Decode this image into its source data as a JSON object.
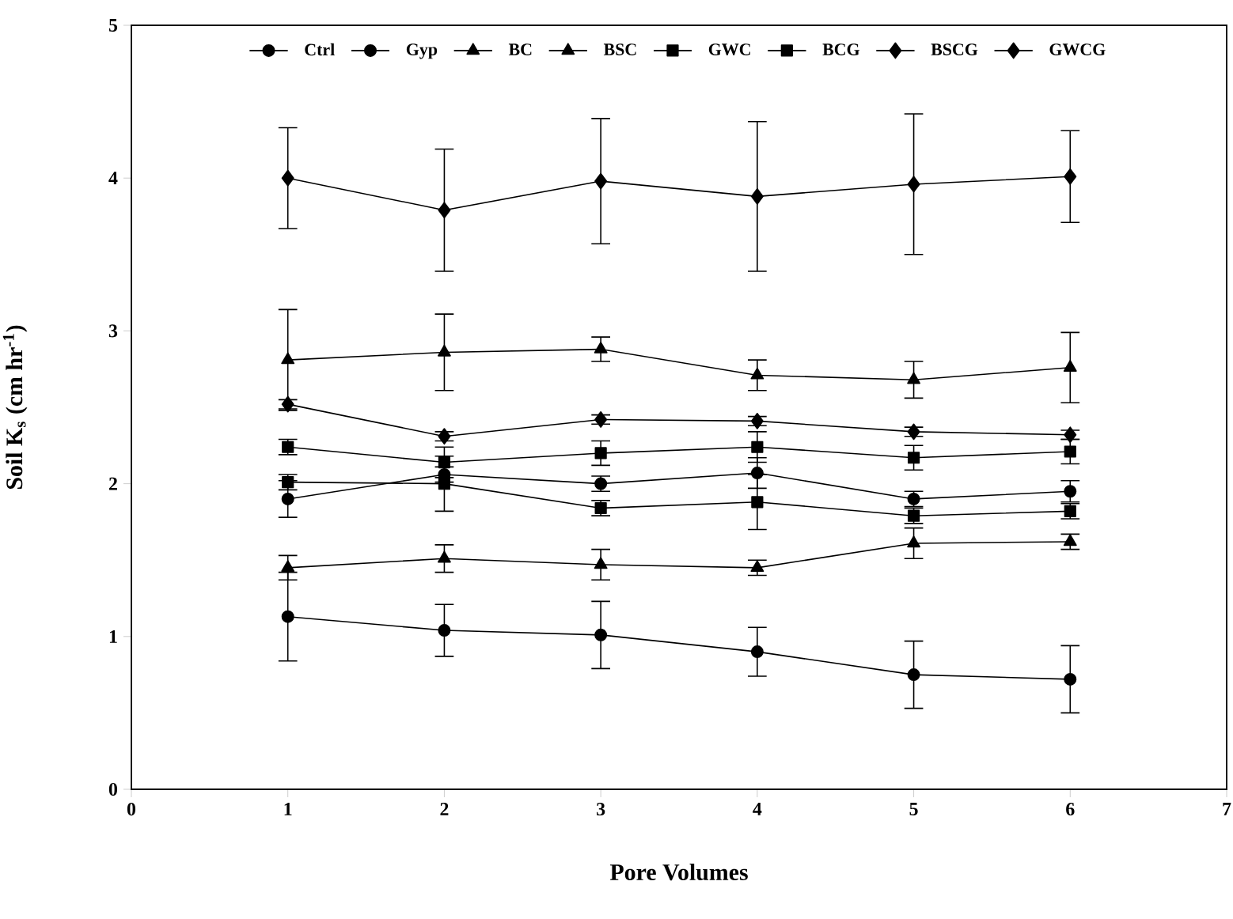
{
  "chart_data": {
    "type": "line",
    "xlabel": "Pore Volumes",
    "ylabel": "Soil K$_{s}$ (cm hr$^{-1}$)",
    "x": [
      1,
      2,
      3,
      4,
      5,
      6
    ],
    "xlim": [
      0,
      7
    ],
    "xticks": [
      0,
      1,
      2,
      3,
      4,
      5,
      6,
      7
    ],
    "ylim": [
      0,
      5
    ],
    "yticks": [
      0,
      1,
      2,
      3,
      4,
      5
    ],
    "legend": "top",
    "grid": false,
    "line_style": "solid",
    "series": [
      {
        "name": "Ctrl",
        "color": "#000000",
        "marker": "circle",
        "values": [
          1.13,
          1.04,
          1.01,
          0.9,
          0.75,
          0.72
        ],
        "errors": [
          0.29,
          0.17,
          0.22,
          0.16,
          0.22,
          0.22
        ]
      },
      {
        "name": "Gyp",
        "color": "#000000",
        "marker": "circle",
        "values": [
          1.9,
          2.06,
          2.0,
          2.07,
          1.9,
          1.95
        ],
        "errors": [
          0.12,
          0.05,
          0.05,
          0.1,
          0.05,
          0.07
        ]
      },
      {
        "name": "BC",
        "color": "#000000",
        "marker": "triangle",
        "values": [
          1.45,
          1.51,
          1.47,
          1.45,
          1.61,
          1.62
        ],
        "errors": [
          0.08,
          0.09,
          0.1,
          0.05,
          0.1,
          0.05
        ]
      },
      {
        "name": "BSC",
        "color": "#000000",
        "marker": "triangle",
        "values": [
          2.81,
          2.86,
          2.88,
          2.71,
          2.68,
          2.76
        ],
        "errors": [
          0.33,
          0.25,
          0.08,
          0.1,
          0.12,
          0.23
        ]
      },
      {
        "name": "GWC",
        "color": "#000000",
        "marker": "square",
        "values": [
          2.24,
          2.14,
          2.2,
          2.24,
          2.17,
          2.21
        ],
        "errors": [
          0.05,
          0.1,
          0.08,
          0.1,
          0.08,
          0.08
        ]
      },
      {
        "name": "BCG",
        "color": "#000000",
        "marker": "square",
        "values": [
          2.01,
          2.0,
          1.84,
          1.88,
          1.79,
          1.82
        ],
        "errors": [
          0.05,
          0.18,
          0.05,
          0.18,
          0.05,
          0.05
        ]
      },
      {
        "name": "BSCG",
        "color": "#000000",
        "marker": "diamond",
        "values": [
          4.0,
          3.79,
          3.98,
          3.88,
          3.96,
          4.01
        ],
        "errors": [
          0.33,
          0.4,
          0.41,
          0.49,
          0.46,
          0.3
        ]
      },
      {
        "name": "GWCG",
        "color": "#000000",
        "marker": "diamond",
        "values": [
          2.52,
          2.31,
          2.42,
          2.41,
          2.34,
          2.32
        ],
        "errors": [
          0.03,
          0.03,
          0.03,
          0.03,
          0.03,
          0.03
        ]
      }
    ]
  }
}
